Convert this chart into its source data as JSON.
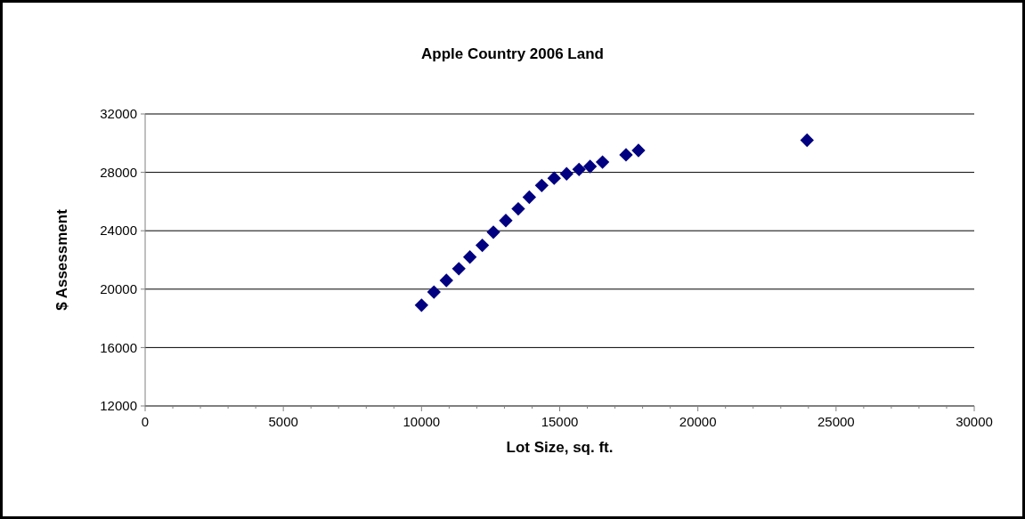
{
  "chart_data": {
    "type": "scatter",
    "title": "Apple Country 2006 Land",
    "xlabel": "Lot Size, sq. ft.",
    "ylabel": "$ Assessment",
    "x": [
      10000,
      10450,
      10900,
      11350,
      11750,
      12200,
      12600,
      13050,
      13500,
      13900,
      14350,
      14800,
      15250,
      15700,
      16100,
      16550,
      17400,
      17850,
      23950
    ],
    "series": [
      {
        "color": "#000080",
        "values": [
          18900,
          19800,
          20600,
          21400,
          22200,
          23000,
          23900,
          24700,
          25500,
          26300,
          27100,
          27600,
          27900,
          28200,
          28400,
          28700,
          29200,
          29500,
          30200
        ]
      }
    ],
    "xlim": [
      0,
      30000
    ],
    "xticks": [
      0,
      5000,
      10000,
      15000,
      20000,
      25000,
      30000
    ],
    "ylim": [
      12000,
      32000
    ],
    "yticks": [
      12000,
      16000,
      20000,
      24000,
      28000,
      32000
    ],
    "grid": "y",
    "marker": "diamond"
  }
}
